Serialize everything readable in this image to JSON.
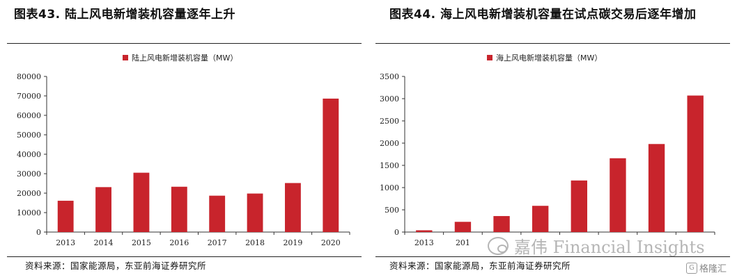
{
  "colors": {
    "bar": "#c8242c",
    "axis": "#333333"
  },
  "left": {
    "title": "图表43.  陆上风电新增装机容量逐年上升",
    "source": "资料来源：国家能源局，东亚前海证券研究所"
  },
  "right": {
    "title": "图表44.  海上风电新增装机容量在试点碳交易后逐年增加",
    "source": "资料来源：国家能源局，东亚前海证券研究所"
  },
  "watermark": {
    "text": "嘉伟 Financial Insights",
    "icon": "wechat-icon"
  },
  "badge": {
    "text": "格隆汇",
    "icon": "g-logo-icon",
    "icon_glyph": "G"
  },
  "chart_data": [
    {
      "type": "bar",
      "categories": [
        "2013",
        "2014",
        "2015",
        "2016",
        "2017",
        "2018",
        "2019",
        "2020"
      ],
      "series": [
        {
          "name": "陆上风电新增装机容量（MW）",
          "values": [
            16100,
            23100,
            30500,
            23300,
            18700,
            19800,
            25200,
            68600
          ]
        }
      ],
      "ylim": [
        0,
        80000
      ],
      "yticks": [
        0,
        10000,
        20000,
        30000,
        40000,
        50000,
        60000,
        70000,
        80000
      ],
      "legend": "top-center",
      "grid": false
    },
    {
      "type": "bar",
      "categories": [
        "2013",
        "201",
        "",
        "",
        "",
        "",
        "",
        ""
      ],
      "series": [
        {
          "name": "海上风电新增装机容量（MW）",
          "values": [
            40,
            230,
            360,
            590,
            1160,
            1660,
            1980,
            3070
          ]
        }
      ],
      "ylim": [
        0,
        3500
      ],
      "yticks": [
        0,
        500,
        1000,
        1500,
        2000,
        2500,
        3000,
        3500
      ],
      "legend": "top-center",
      "grid": false
    }
  ]
}
